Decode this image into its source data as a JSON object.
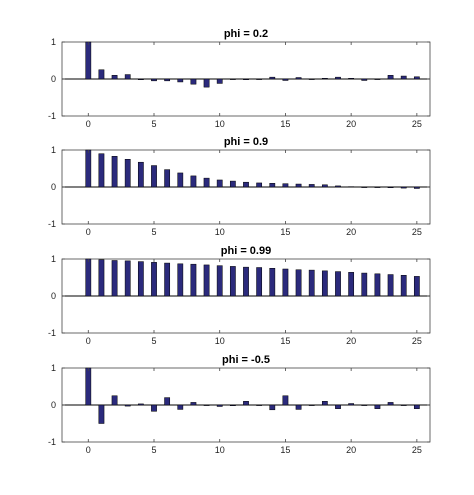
{
  "chart_data": [
    {
      "type": "bar",
      "title": "phi = 0.2",
      "x": [
        0,
        1,
        2,
        3,
        4,
        5,
        6,
        7,
        8,
        9,
        10,
        11,
        12,
        13,
        14,
        15,
        16,
        17,
        18,
        19,
        20,
        21,
        22,
        23,
        24,
        25
      ],
      "values": [
        1.0,
        0.25,
        0.1,
        0.12,
        -0.02,
        -0.05,
        -0.05,
        -0.08,
        -0.14,
        -0.22,
        -0.12,
        0.0,
        -0.02,
        0.0,
        0.05,
        -0.04,
        0.04,
        0.0,
        0.02,
        0.05,
        0.02,
        -0.04,
        0.0,
        0.1,
        0.08,
        0.06
      ],
      "xlim": [
        -2,
        26
      ],
      "ylim": [
        -1,
        1
      ],
      "xticks": [
        0,
        5,
        10,
        15,
        20,
        25
      ],
      "yticks": [
        -1,
        0,
        1
      ],
      "bar_color": "#2b2a7c"
    },
    {
      "type": "bar",
      "title": "phi = 0.9",
      "x": [
        0,
        1,
        2,
        3,
        4,
        5,
        6,
        7,
        8,
        9,
        10,
        11,
        12,
        13,
        14,
        15,
        16,
        17,
        18,
        19,
        20,
        21,
        22,
        23,
        24,
        25
      ],
      "values": [
        1.0,
        0.9,
        0.83,
        0.75,
        0.67,
        0.58,
        0.47,
        0.38,
        0.3,
        0.24,
        0.19,
        0.16,
        0.13,
        0.11,
        0.1,
        0.09,
        0.08,
        0.07,
        0.06,
        0.03,
        0.01,
        0.0,
        -0.01,
        -0.02,
        -0.03,
        -0.04
      ],
      "xlim": [
        -2,
        26
      ],
      "ylim": [
        -1,
        1
      ],
      "xticks": [
        0,
        5,
        10,
        15,
        20,
        25
      ],
      "yticks": [
        -1,
        0,
        1
      ],
      "bar_color": "#2b2a7c"
    },
    {
      "type": "bar",
      "title": "phi = 0.99",
      "x": [
        0,
        1,
        2,
        3,
        4,
        5,
        6,
        7,
        8,
        9,
        10,
        11,
        12,
        13,
        14,
        15,
        16,
        17,
        18,
        19,
        20,
        21,
        22,
        23,
        24,
        25
      ],
      "values": [
        1.0,
        0.98,
        0.96,
        0.95,
        0.93,
        0.91,
        0.89,
        0.87,
        0.86,
        0.84,
        0.82,
        0.8,
        0.78,
        0.77,
        0.75,
        0.73,
        0.71,
        0.7,
        0.68,
        0.66,
        0.64,
        0.62,
        0.6,
        0.58,
        0.56,
        0.53
      ],
      "xlim": [
        -2,
        26
      ],
      "ylim": [
        -1,
        1
      ],
      "xticks": [
        0,
        5,
        10,
        15,
        20,
        25
      ],
      "yticks": [
        -1,
        0,
        1
      ],
      "bar_color": "#2b2a7c"
    },
    {
      "type": "bar",
      "title": "phi = -0.5",
      "x": [
        0,
        1,
        2,
        3,
        4,
        5,
        6,
        7,
        8,
        9,
        10,
        11,
        12,
        13,
        14,
        15,
        16,
        17,
        18,
        19,
        20,
        21,
        22,
        23,
        24,
        25
      ],
      "values": [
        1.0,
        -0.5,
        0.25,
        -0.03,
        0.03,
        -0.17,
        0.2,
        -0.12,
        0.07,
        0.0,
        -0.04,
        -0.02,
        0.1,
        0.0,
        -0.13,
        0.25,
        -0.12,
        0.0,
        0.1,
        -0.1,
        0.04,
        0.0,
        -0.1,
        0.07,
        0.0,
        -0.1
      ],
      "xlim": [
        -2,
        26
      ],
      "ylim": [
        -1,
        1
      ],
      "xticks": [
        0,
        5,
        10,
        15,
        20,
        25
      ],
      "yticks": [
        -1,
        0,
        1
      ],
      "bar_color": "#2b2a7c"
    }
  ]
}
